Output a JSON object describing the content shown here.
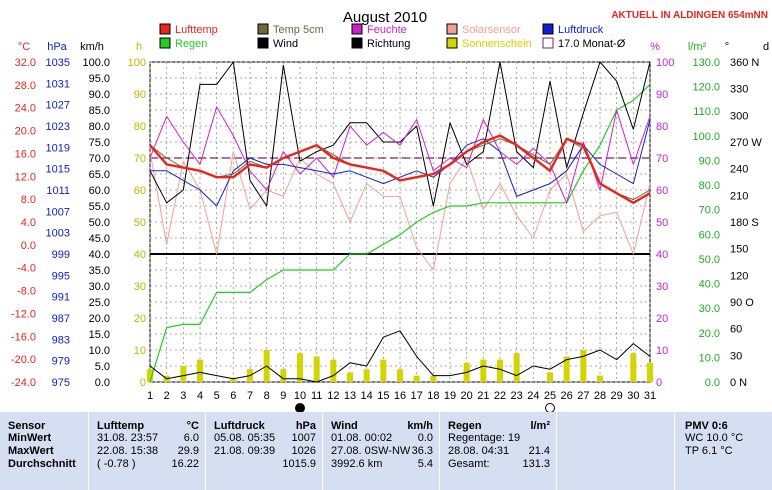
{
  "chart_data": {
    "type": "line",
    "title": "August 2010",
    "header_right": "AKTUELL IN ALDINGEN 654mNN",
    "colors": {
      "lufttemp": "#e8251e",
      "temp5": "#6a6a3a",
      "feuchte": "#cc22cc",
      "solar": "#f4a090",
      "luftdruck": "#1020cc",
      "regen": "#22cc22",
      "wind": "#000000",
      "richtung": "#000000",
      "sonne": "#d4d400",
      "monat": "#802060"
    },
    "axes": {
      "celsius": {
        "label": "°C",
        "ticks": [
          "32.0",
          "28.0",
          "24.0",
          "20.0",
          "16.0",
          "12.0",
          "8.0",
          "4.0",
          "0.0",
          "-4.0",
          "-8.0",
          "-12.0",
          "-16.0",
          "-20.0",
          "-24.0"
        ]
      },
      "hpa": {
        "label": "hPa",
        "ticks": [
          "1035",
          "1031",
          "1027",
          "1023",
          "1019",
          "1015",
          "1011",
          "1007",
          "1003",
          "999",
          "995",
          "991",
          "987",
          "983",
          "979",
          "975"
        ]
      },
      "kmh": {
        "label": "km/h",
        "ticks": [
          "100.0",
          "95.0",
          "90.0",
          "85.0",
          "80.0",
          "75.0",
          "70.0",
          "65.0",
          "60.0",
          "55.0",
          "50.0",
          "45.0",
          "40.0",
          "35.0",
          "30.0",
          "25.0",
          "20.0",
          "15.0",
          "10.0",
          "5.0",
          "0.0"
        ],
        "range": [
          0,
          100
        ]
      },
      "hours": {
        "label": "h",
        "ticks": [
          "100",
          "90",
          "80",
          "70",
          "60",
          "50",
          "40",
          "30",
          "20",
          "10",
          "0"
        ]
      },
      "percent": {
        "label": "%",
        "ticks": [
          "100",
          "90",
          "80",
          "70",
          "60",
          "50",
          "40",
          "30",
          "20",
          "10",
          "0"
        ]
      },
      "rain": {
        "label": "l/m²",
        "ticks": [
          "130.0",
          "120.0",
          "110.0",
          "100.0",
          "90.0",
          "80.0",
          "70.0",
          "60.0",
          "50.0",
          "40.0",
          "30.0",
          "20.0",
          "10.0",
          "0.0"
        ]
      },
      "direction": {
        "label": "°",
        "ticks": [
          "360 N",
          "330",
          "300",
          "270 W",
          "240",
          "210",
          "180 S",
          "150",
          "120",
          "90 O",
          "60",
          "30",
          "0 N"
        ]
      },
      "d_label": "d"
    },
    "x": [
      1,
      2,
      3,
      4,
      5,
      6,
      7,
      8,
      9,
      10,
      11,
      12,
      13,
      14,
      15,
      16,
      17,
      18,
      19,
      20,
      21,
      22,
      23,
      24,
      25,
      26,
      27,
      28,
      29,
      30,
      31
    ],
    "legend": [
      {
        "key": "lufttemp",
        "label": "Lufttemp"
      },
      {
        "key": "temp5",
        "label": "Temp 5cm"
      },
      {
        "key": "feuchte",
        "label": "Feuchte"
      },
      {
        "key": "solar",
        "label": "Solarsensor"
      },
      {
        "key": "luftdruck",
        "label": "Luftdruck"
      },
      {
        "key": "regen",
        "label": "Regen"
      },
      {
        "key": "wind",
        "label": "Wind"
      },
      {
        "key": "richtung",
        "label": "Richtung"
      },
      {
        "key": "sonne",
        "label": "Sonnenschein"
      },
      {
        "key": "monat",
        "label": "17.0 Monat-Ø"
      }
    ],
    "series_kmh_scale": {
      "lufttemp": [
        74,
        68,
        67,
        66,
        64,
        64,
        68,
        67,
        70,
        72,
        74,
        70,
        68,
        67,
        66,
        63,
        64,
        65,
        68,
        72,
        75,
        77,
        74,
        70,
        66,
        76,
        74,
        62,
        59,
        56,
        59
      ],
      "temp5": [
        74,
        70,
        67,
        66,
        64,
        65,
        69,
        67,
        70,
        72,
        74,
        71,
        68,
        67,
        66,
        63,
        64,
        65,
        68,
        72,
        74,
        76,
        74,
        71,
        68,
        76,
        73,
        62,
        59,
        57,
        60
      ],
      "feuchte": [
        70,
        83,
        75,
        68,
        86,
        77,
        66,
        60,
        72,
        65,
        70,
        64,
        80,
        74,
        78,
        74,
        82,
        66,
        70,
        67,
        82,
        72,
        68,
        73,
        68,
        56,
        75,
        60,
        85,
        68,
        83
      ],
      "solar": [
        72,
        43,
        69,
        60,
        40,
        72,
        54,
        60,
        58,
        70,
        65,
        62,
        50,
        62,
        58,
        58,
        42,
        35,
        62,
        70,
        54,
        62,
        52,
        45,
        60,
        65,
        47,
        52,
        53,
        40,
        62
      ],
      "luftdruck": [
        66,
        66,
        63,
        60,
        55,
        66,
        70,
        68,
        68,
        67,
        66,
        65,
        66,
        64,
        62,
        64,
        66,
        64,
        68,
        74,
        76,
        72,
        58,
        60,
        62,
        66,
        74,
        68,
        65,
        62,
        82
      ],
      "wind": [
        66,
        56,
        60,
        93,
        93,
        100,
        63,
        55,
        99,
        69,
        72,
        74,
        81,
        81,
        75,
        75,
        80,
        55,
        81,
        68,
        72,
        100,
        72,
        67,
        94,
        67,
        84,
        100,
        94,
        79,
        100
      ],
      "regen": [
        0,
        17,
        18,
        18,
        28,
        28,
        28,
        32,
        35,
        35,
        35,
        35,
        40,
        40,
        43,
        46,
        50,
        53,
        55,
        55,
        56,
        56,
        56,
        56,
        56,
        56,
        66,
        74,
        85,
        88,
        93
      ],
      "sonnenschein": [
        4,
        2,
        5,
        7,
        0,
        1,
        4,
        10,
        4,
        9,
        8,
        7,
        3,
        4,
        7,
        4,
        2,
        2,
        0,
        6,
        7,
        7,
        9,
        0,
        3,
        8,
        10,
        2,
        0,
        9,
        6
      ],
      "wind_low": [
        5,
        1,
        2,
        3,
        2,
        1,
        2,
        5,
        1,
        1,
        0,
        2,
        6,
        5,
        14,
        16,
        8,
        2,
        2,
        3,
        5,
        4,
        2,
        5,
        4,
        7,
        8,
        10,
        7,
        12,
        8
      ]
    },
    "monat_avg": 70,
    "rain_total_ref": 40,
    "moon": [
      {
        "day": 10,
        "phase": "full"
      },
      {
        "day": 25,
        "phase": "new"
      }
    ]
  },
  "stats": {
    "sensor": {
      "title": "Sensor",
      "rows": [
        "MinWert",
        "MaxWert",
        "Durchschnitt"
      ]
    },
    "lufttemp": {
      "title": "Lufttemp",
      "unit": "°C",
      "rows": [
        [
          "31.08.  23:57",
          "6.0"
        ],
        [
          "22.08.  15:38",
          "29.9"
        ],
        [
          "( -0.78 )",
          "16.22"
        ]
      ]
    },
    "luftdruck": {
      "title": "Luftdruck",
      "unit": "hPa",
      "rows": [
        [
          "05.08.  05:35",
          "1007"
        ],
        [
          "21.08.  09:39",
          "1026"
        ],
        [
          "",
          "1015.9"
        ]
      ]
    },
    "wind": {
      "title": "Wind",
      "unit": "km/h",
      "rows": [
        [
          "01.08.  00:02",
          "0.0"
        ],
        [
          "27.08.  0SW-NW",
          "36.3"
        ],
        [
          "3992.6 km",
          "5.4"
        ]
      ]
    },
    "regen": {
      "title": "Regen",
      "unit": "l/m²",
      "rows": [
        [
          "Regentage: 19",
          ""
        ],
        [
          "28.08.  04:31",
          "21.4"
        ],
        [
          "Gesamt:",
          "131.3"
        ]
      ]
    },
    "pmv": {
      "title": "PMV 0:6",
      "rows": [
        "WC 10.0 °C",
        "TP 6.1 °C"
      ]
    }
  }
}
